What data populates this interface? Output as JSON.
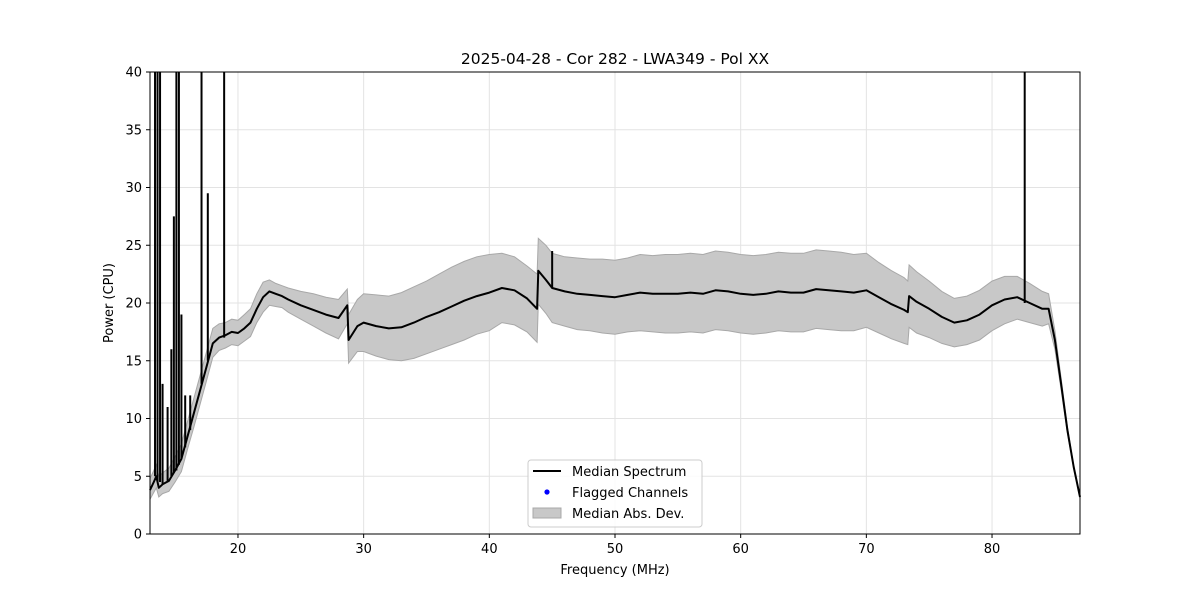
{
  "chart_data": {
    "type": "line",
    "title": "2025-04-28 - Cor 282 - LWA349 - Pol XX",
    "xlabel": "Frequency (MHz)",
    "ylabel": "Power (CPU)",
    "xlim": [
      13,
      87
    ],
    "ylim": [
      0,
      40
    ],
    "xticks": [
      "20",
      "30",
      "40",
      "50",
      "60",
      "70",
      "80"
    ],
    "yticks": [
      "0",
      "5",
      "10",
      "15",
      "20",
      "25",
      "30",
      "35",
      "40"
    ],
    "grid": true,
    "legend_placement": "bottom-center",
    "legend": [
      {
        "label": "Median Spectrum",
        "kind": "line"
      },
      {
        "label": "Flagged Channels",
        "kind": "point"
      },
      {
        "label": "Median Abs. Dev.",
        "kind": "band"
      }
    ],
    "colors": {
      "median": "#000000",
      "flagged": "#0000ff",
      "mad_fill": "#c8c8c8",
      "mad_edge": "#a8a8a8"
    },
    "series": [
      {
        "name": "Median Spectrum",
        "x": [
          13.0,
          13.3,
          13.5,
          13.7,
          14.0,
          14.5,
          15.0,
          15.5,
          16.0,
          16.5,
          17.0,
          17.5,
          18.0,
          18.5,
          19.0,
          19.5,
          20.0,
          20.5,
          21.0,
          21.5,
          22.0,
          22.5,
          23.0,
          23.5,
          24.0,
          25.0,
          26.0,
          27.0,
          28.0,
          28.7,
          28.8,
          29.5,
          30.0,
          31.0,
          32.0,
          33.0,
          34.0,
          35.0,
          36.0,
          37.0,
          38.0,
          39.0,
          40.0,
          41.0,
          42.0,
          43.0,
          43.8,
          43.9,
          44.5,
          45.0,
          46.0,
          47.0,
          48.0,
          49.0,
          50.0,
          51.0,
          52.0,
          53.0,
          54.0,
          55.0,
          56.0,
          57.0,
          58.0,
          59.0,
          60.0,
          61.0,
          62.0,
          63.0,
          64.0,
          65.0,
          66.0,
          67.0,
          68.0,
          69.0,
          70.0,
          71.0,
          72.0,
          73.0,
          73.3,
          73.4,
          74.0,
          75.0,
          76.0,
          77.0,
          78.0,
          79.0,
          80.0,
          81.0,
          82.0,
          83.0,
          84.0,
          84.5,
          85.0,
          85.5,
          86.0,
          86.5,
          87.0
        ],
        "y": [
          3.8,
          4.5,
          5.0,
          4.0,
          4.3,
          4.6,
          5.5,
          6.5,
          8.5,
          10.5,
          12.5,
          14.5,
          16.5,
          17.0,
          17.2,
          17.5,
          17.4,
          17.8,
          18.3,
          19.5,
          20.5,
          21.0,
          20.8,
          20.6,
          20.3,
          19.8,
          19.4,
          19.0,
          18.7,
          19.8,
          16.8,
          18.0,
          18.3,
          18.0,
          17.8,
          17.9,
          18.3,
          18.8,
          19.2,
          19.7,
          20.2,
          20.6,
          20.9,
          21.3,
          21.1,
          20.4,
          19.5,
          22.8,
          22.0,
          21.3,
          21.0,
          20.8,
          20.7,
          20.6,
          20.5,
          20.7,
          20.9,
          20.8,
          20.8,
          20.8,
          20.9,
          20.8,
          21.1,
          21.0,
          20.8,
          20.7,
          20.8,
          21.0,
          20.9,
          20.9,
          21.2,
          21.1,
          21.0,
          20.9,
          21.1,
          20.5,
          19.9,
          19.4,
          19.2,
          20.6,
          20.1,
          19.5,
          18.8,
          18.3,
          18.5,
          19.0,
          19.8,
          20.3,
          20.5,
          20.0,
          19.5,
          19.5,
          16.8,
          13.0,
          9.0,
          5.8,
          3.2
        ]
      },
      {
        "name": "Median Abs. Dev.",
        "x": [
          13.0,
          13.3,
          13.5,
          13.7,
          14.0,
          14.5,
          15.0,
          15.5,
          16.0,
          16.5,
          17.0,
          17.5,
          18.0,
          18.5,
          19.0,
          19.5,
          20.0,
          20.5,
          21.0,
          21.5,
          22.0,
          22.5,
          23.0,
          23.5,
          24.0,
          25.0,
          26.0,
          27.0,
          28.0,
          28.7,
          28.8,
          29.5,
          30.0,
          31.0,
          32.0,
          33.0,
          34.0,
          35.0,
          36.0,
          37.0,
          38.0,
          39.0,
          40.0,
          41.0,
          42.0,
          43.0,
          43.8,
          43.9,
          44.5,
          45.0,
          46.0,
          47.0,
          48.0,
          49.0,
          50.0,
          51.0,
          52.0,
          53.0,
          54.0,
          55.0,
          56.0,
          57.0,
          58.0,
          59.0,
          60.0,
          61.0,
          62.0,
          63.0,
          64.0,
          65.0,
          66.0,
          67.0,
          68.0,
          69.0,
          70.0,
          71.0,
          72.0,
          73.0,
          73.3,
          73.4,
          74.0,
          75.0,
          76.0,
          77.0,
          78.0,
          79.0,
          80.0,
          81.0,
          82.0,
          83.0,
          84.0,
          84.5,
          85.0,
          85.5,
          86.0,
          86.5,
          87.0
        ],
        "upper": [
          4.8,
          5.5,
          6.0,
          5.0,
          5.3,
          5.7,
          6.7,
          7.8,
          9.8,
          11.8,
          13.8,
          15.8,
          17.8,
          18.2,
          18.3,
          18.6,
          18.5,
          19.0,
          19.5,
          20.8,
          21.8,
          22.0,
          21.7,
          21.5,
          21.3,
          21.0,
          20.8,
          20.5,
          20.3,
          21.2,
          19.0,
          20.3,
          20.8,
          20.7,
          20.6,
          20.9,
          21.4,
          21.9,
          22.5,
          23.1,
          23.6,
          24.0,
          24.2,
          24.3,
          24.0,
          23.2,
          22.5,
          25.6,
          25.0,
          24.3,
          24.0,
          23.9,
          23.8,
          23.8,
          23.7,
          23.9,
          24.2,
          24.1,
          24.2,
          24.2,
          24.3,
          24.2,
          24.5,
          24.4,
          24.2,
          24.1,
          24.2,
          24.4,
          24.3,
          24.3,
          24.6,
          24.5,
          24.4,
          24.2,
          24.3,
          23.5,
          22.8,
          22.2,
          21.9,
          23.3,
          22.7,
          21.9,
          21.0,
          20.4,
          20.6,
          21.1,
          21.9,
          22.3,
          22.3,
          21.7,
          21.0,
          20.8,
          17.6,
          13.5,
          9.3,
          5.9,
          3.2
        ],
        "lower": [
          3.0,
          3.6,
          4.0,
          3.2,
          3.5,
          3.7,
          4.5,
          5.4,
          7.4,
          9.3,
          11.3,
          13.3,
          15.3,
          15.9,
          16.1,
          16.4,
          16.3,
          16.7,
          17.1,
          18.3,
          19.2,
          19.8,
          19.7,
          19.6,
          19.2,
          18.6,
          18.0,
          17.4,
          16.9,
          18.2,
          14.8,
          15.8,
          15.8,
          15.4,
          15.1,
          15.0,
          15.2,
          15.6,
          16.0,
          16.4,
          16.8,
          17.3,
          17.6,
          18.3,
          18.1,
          17.5,
          16.6,
          19.9,
          19.1,
          18.3,
          18.0,
          17.7,
          17.6,
          17.4,
          17.3,
          17.5,
          17.6,
          17.5,
          17.4,
          17.4,
          17.5,
          17.4,
          17.7,
          17.6,
          17.4,
          17.3,
          17.4,
          17.6,
          17.5,
          17.5,
          17.8,
          17.7,
          17.6,
          17.6,
          17.9,
          17.4,
          16.9,
          16.5,
          16.4,
          17.9,
          17.4,
          17.0,
          16.5,
          16.2,
          16.4,
          16.8,
          17.6,
          18.2,
          18.6,
          18.3,
          18.0,
          18.2,
          16.0,
          12.5,
          8.7,
          5.7,
          3.2
        ]
      }
    ],
    "spikes": [
      {
        "x": 13.4,
        "base": 5.0,
        "peak": 40
      },
      {
        "x": 13.6,
        "base": 4.5,
        "peak": 40
      },
      {
        "x": 13.8,
        "base": 4.5,
        "peak": 40
      },
      {
        "x": 14.0,
        "base": 4.3,
        "peak": 13
      },
      {
        "x": 14.4,
        "base": 4.6,
        "peak": 11
      },
      {
        "x": 14.7,
        "base": 5.0,
        "peak": 16
      },
      {
        "x": 14.9,
        "base": 5.3,
        "peak": 27.5
      },
      {
        "x": 15.1,
        "base": 5.5,
        "peak": 40
      },
      {
        "x": 15.3,
        "base": 6.0,
        "peak": 40
      },
      {
        "x": 15.5,
        "base": 6.5,
        "peak": 19
      },
      {
        "x": 15.8,
        "base": 7.5,
        "peak": 12
      },
      {
        "x": 16.2,
        "base": 9.0,
        "peak": 12
      },
      {
        "x": 17.1,
        "base": 13.0,
        "peak": 40
      },
      {
        "x": 17.6,
        "base": 15.0,
        "peak": 29.5
      },
      {
        "x": 18.9,
        "base": 17.0,
        "peak": 40
      },
      {
        "x": 45.0,
        "base": 21.3,
        "peak": 24.5
      },
      {
        "x": 82.6,
        "base": 20.0,
        "peak": 40
      }
    ],
    "flagged_channels": []
  }
}
